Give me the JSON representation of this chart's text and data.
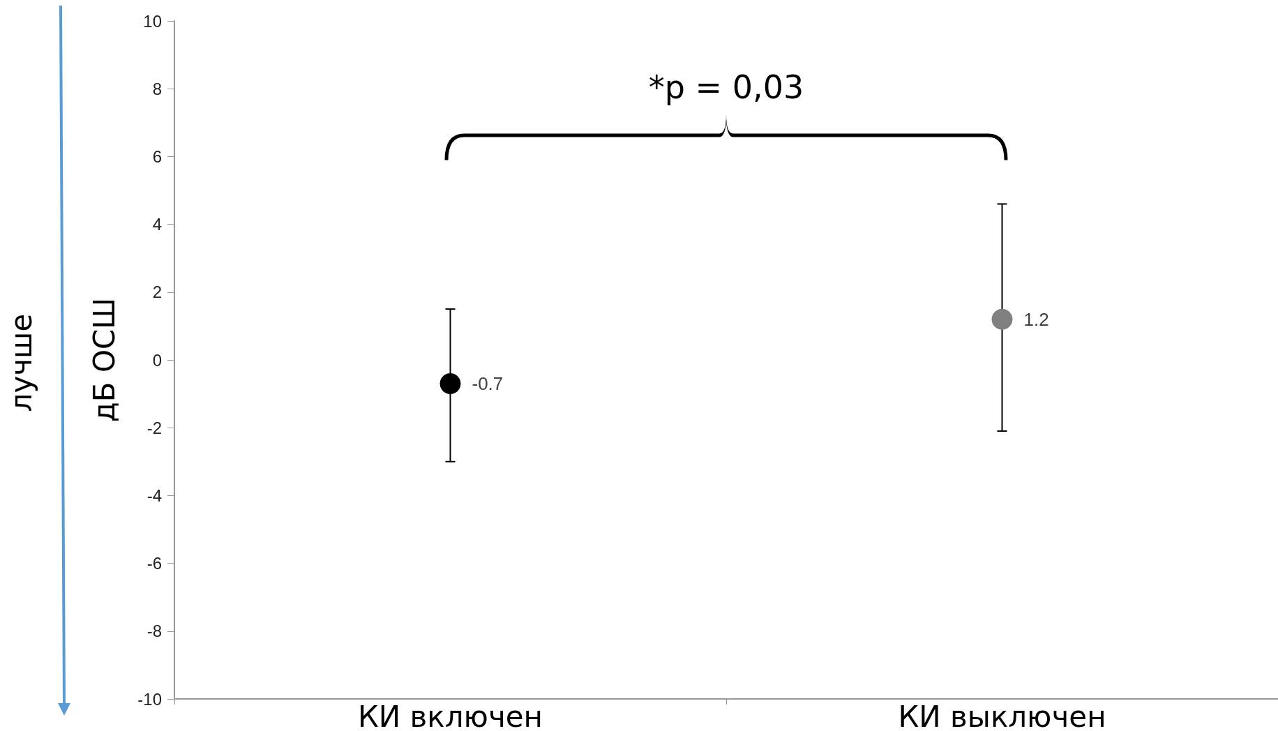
{
  "chart_data": {
    "type": "scatter",
    "ylabel": "дБ ОСШ",
    "categories": [
      "КИ включен",
      "КИ выключен"
    ],
    "values": [
      -0.7,
      1.2
    ],
    "colors": [
      "#000000",
      "#808080"
    ],
    "errors": [
      [
        -3.0,
        1.5
      ],
      [
        -2.1,
        4.6
      ]
    ],
    "data_labels": true,
    "ylim": [
      -10,
      10
    ],
    "yticks": [
      -10,
      -8,
      -6,
      -4,
      -2,
      0,
      2,
      4,
      6,
      8,
      10
    ],
    "grid": false,
    "marker": "circle",
    "annotations": [
      "*p = 0,03",
      "лучше"
    ]
  }
}
